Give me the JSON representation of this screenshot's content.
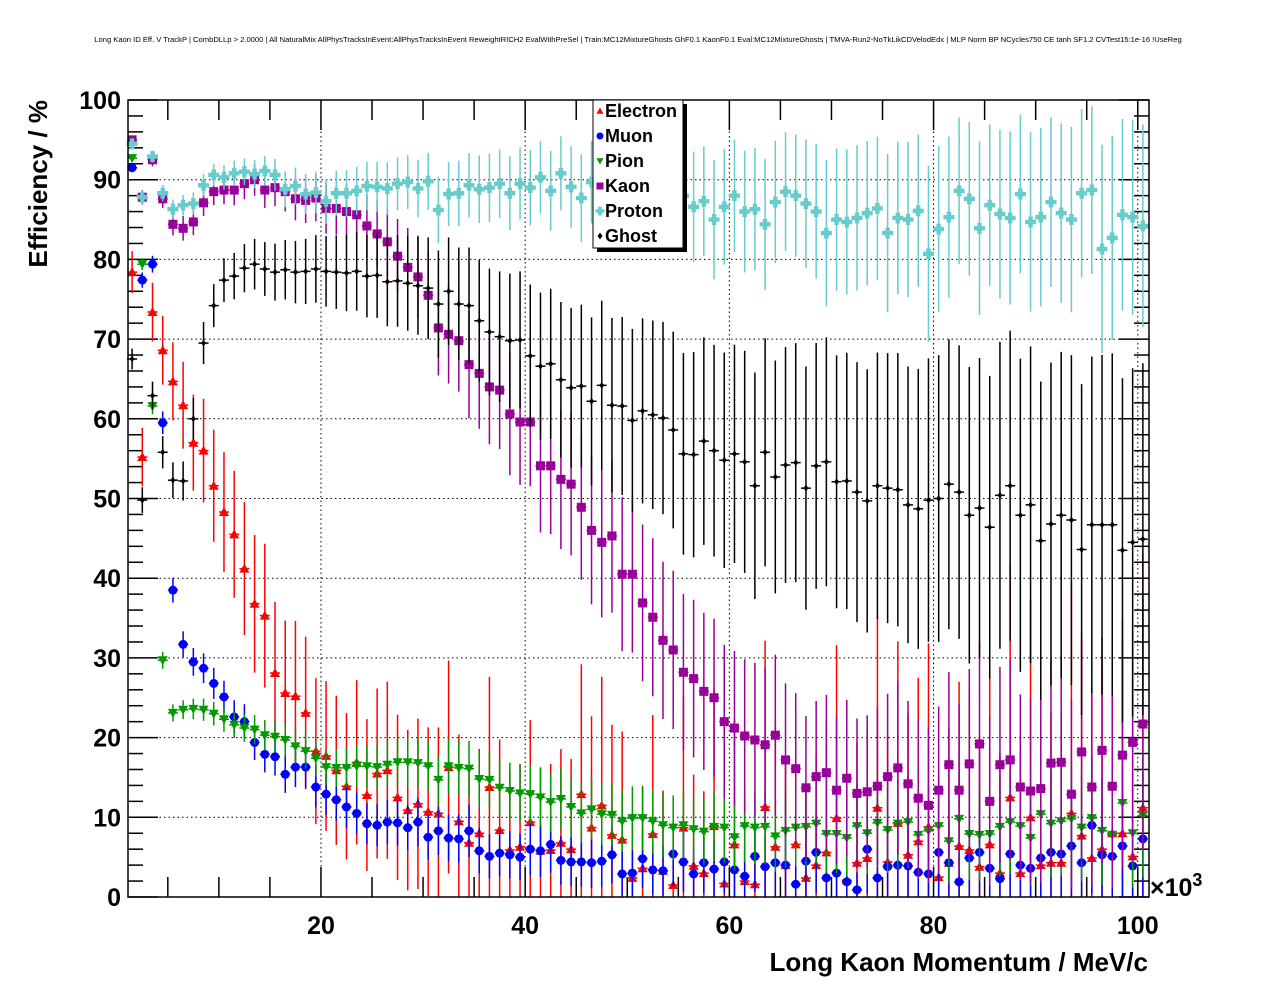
{
  "chart_data": {
    "type": "scatter",
    "title": "Long Kaon ID Eff. V TrackP | CombDLLp > 2.0000 | All NaturalMix AllPhysTracksInEvent:AllPhysTracksInEvent ReweightRICH2 EvalWithPreSel | Train:MC12MixtureGhosts GhF0.1 KaonF0.1 Eval:MC12MixtureGhosts | TMVA-Run2-NoTkLikCDVelodEdx | MLP Norm BP NCycles750 CE tanh SF1.2 CVTest15:1e-16 !UseReg",
    "xlabel": "Long Kaon Momentum / MeV/c",
    "ylabel": "Efficiency / %",
    "x_multiplier_label": "×10",
    "x_multiplier_exp": "3",
    "xlim": [
      1.1,
      101.1
    ],
    "ylim": [
      0,
      100
    ],
    "x_ticks": [
      20,
      40,
      60,
      80,
      100
    ],
    "y_ticks": [
      0,
      10,
      20,
      30,
      40,
      50,
      60,
      70,
      80,
      90,
      100
    ],
    "grid": true,
    "legend_position": "top-center",
    "x_start": 1.5,
    "x_step": 1,
    "series": [
      {
        "name": "Electron",
        "color": "#ff0000",
        "marker": "triangle-up",
        "values": [
          78.4,
          55.2,
          73.4,
          68.6,
          64.7,
          61.7,
          57,
          56,
          51.6,
          48.3,
          45.5,
          41.2,
          36.8,
          35.3,
          28.1,
          25.6,
          25.2,
          23.1,
          18.3,
          17.7,
          15.9,
          13.9,
          16.9,
          12.8,
          15.5,
          15.9,
          12.5,
          10.9,
          11.7,
          10.7,
          10.5,
          16.3,
          9.5,
          6.8,
          8,
          13.8,
          8.4,
          5.9,
          6.3,
          9.4,
          5.8,
          5.9,
          6.8,
          6,
          12.9,
          8.7,
          11.5,
          7.8,
          7.2,
          2.4,
          3.6,
          7.9,
          3.3,
          1.5,
          8.7,
          3.9,
          3,
          8.9,
          1.7,
          6.6,
          2,
          1.6,
          11.3,
          6.3,
          4,
          6.6,
          2.4,
          4,
          5.6,
          9.9,
          2.1,
          4.3,
          4.9,
          11.2,
          4.4,
          9.3,
          5.3,
          7,
          8.8,
          2.5,
          4.3,
          6.4,
          5.9,
          3.8,
          6.6,
          3,
          12.5,
          3,
          10,
          4,
          4.3,
          4.3,
          10.5,
          7.7,
          4.9,
          6,
          8,
          8,
          5.1,
          11.2
        ]
      },
      {
        "name": "Muon",
        "color": "#0000ff",
        "marker": "circle",
        "values": [
          91.5,
          77.4,
          79.4,
          59.5,
          38.5,
          31.7,
          29.5,
          28.7,
          26.8,
          25.1,
          22.6,
          22,
          19.4,
          17.9,
          17.6,
          15.4,
          16.3,
          16.3,
          13.8,
          12.9,
          12.2,
          11.3,
          10.5,
          9.2,
          9,
          9.4,
          9.3,
          8.7,
          9.4,
          7.5,
          8.3,
          7.4,
          7.3,
          8.3,
          5.8,
          5.1,
          5.5,
          5.3,
          5,
          6,
          5.8,
          6.6,
          4.6,
          4.4,
          4.4,
          4.3,
          4.5,
          5.3,
          2.9,
          3,
          4.8,
          3.4,
          3.3,
          5.4,
          4.4,
          2.9,
          4.3,
          3.5,
          4.4,
          3.4,
          2.6,
          5.1,
          3.8,
          4.3,
          4,
          1.6,
          4.5,
          5.6,
          2.4,
          3,
          1.9,
          0.9,
          6,
          2.4,
          3.8,
          4,
          3.9,
          3.1,
          2.9,
          5.6,
          4.3,
          1.9,
          4.9,
          5.6,
          3.6,
          2.3,
          5.4,
          4,
          3.6,
          4.9,
          5.6,
          5.4,
          6.4,
          4.3,
          9,
          5.3,
          5.1,
          6.4,
          3.9,
          7.3
        ]
      },
      {
        "name": "Pion",
        "color": "#009900",
        "marker": "triangle-down",
        "values": [
          92.7,
          79.4,
          61.6,
          29.7,
          23.1,
          23.5,
          23.6,
          23.5,
          23,
          22.3,
          21.6,
          21.2,
          21,
          20.3,
          20.1,
          19.7,
          18.9,
          18.3,
          17.4,
          16.3,
          16.2,
          16.2,
          16.4,
          16.4,
          16.3,
          16.6,
          16.9,
          16.9,
          16.8,
          16.4,
          14.7,
          16.4,
          16.2,
          16.1,
          14.8,
          14.7,
          13.7,
          13.3,
          13,
          12.9,
          12.5,
          11.9,
          12.3,
          11.3,
          10.5,
          11,
          10.4,
          10.3,
          9.5,
          9.9,
          9.9,
          9.5,
          9,
          8.7,
          9,
          8.5,
          8.2,
          8.8,
          8.7,
          7.5,
          8.9,
          8.7,
          8.8,
          7.6,
          8.3,
          8.7,
          8.8,
          9.2,
          7.9,
          7.9,
          7.4,
          8.9,
          8,
          9.3,
          8.4,
          9.2,
          9.4,
          7.8,
          8.3,
          8.9,
          7,
          9.8,
          7.9,
          7.8,
          7.9,
          8.8,
          9.4,
          8.9,
          7.4,
          10.4,
          9.2,
          9.5,
          9.8,
          8.7,
          9.9,
          8.3,
          7.8,
          11.8,
          8,
          10.2
        ]
      },
      {
        "name": "Kaon",
        "color": "#990099",
        "marker": "square",
        "values": [
          95,
          87.8,
          92.5,
          87.6,
          84.4,
          83.9,
          84.7,
          87.1,
          88.5,
          88.7,
          88.7,
          89.5,
          90,
          88.7,
          89,
          88.5,
          87.6,
          87.4,
          87.7,
          86.4,
          86.4,
          86,
          85.6,
          84.2,
          83.2,
          82.2,
          80.4,
          79,
          77.8,
          75.5,
          71.4,
          70.6,
          69.8,
          66.8,
          65.7,
          64,
          63.6,
          60.6,
          59.6,
          59.6,
          54.1,
          54.1,
          52.4,
          51.8,
          48.9,
          46,
          44.5,
          45.3,
          40.5,
          40.5,
          36.9,
          35.1,
          32.2,
          31,
          28.2,
          27.4,
          25.8,
          25,
          22,
          21.2,
          20.2,
          19.7,
          19.1,
          20.3,
          17.2,
          16.1,
          13.7,
          15.1,
          15.6,
          13.4,
          14.9,
          13,
          13.2,
          13.9,
          15.1,
          16.2,
          14.2,
          12.4,
          11.5,
          13.4,
          16.6,
          13.4,
          16.7,
          19.2,
          12,
          16.6,
          17.2,
          13.8,
          13.3,
          13.6,
          16.8,
          16.9,
          12.9,
          18.2,
          13.8,
          18.4,
          13.9,
          17.8,
          19.4,
          21.7
        ]
      },
      {
        "name": "Proton",
        "color": "#66cccc",
        "marker": "cross",
        "values": [
          94.5,
          87.8,
          92.9,
          88.3,
          86.3,
          86.8,
          87,
          89.3,
          90.6,
          90.3,
          90.8,
          91,
          90.7,
          91.1,
          90.6,
          88.8,
          89.2,
          88.2,
          88.4,
          87.3,
          88.3,
          88.3,
          88.6,
          89.2,
          89.1,
          88.9,
          89.5,
          89.7,
          88.9,
          89.8,
          86.2,
          88.2,
          88.3,
          89.3,
          88.8,
          89,
          89.5,
          88.3,
          89.5,
          89,
          90.3,
          88.6,
          90.8,
          89.1,
          87.7,
          89.7,
          88.5,
          88,
          89,
          88.5,
          88,
          88.7,
          88.3,
          88.5,
          88,
          86.6,
          87.3,
          85,
          86.6,
          88,
          86,
          86.3,
          84.4,
          87.2,
          88.5,
          88,
          87,
          86,
          83.3,
          85,
          84.7,
          85.2,
          85.8,
          86.4,
          83.3,
          85.2,
          85,
          86.1,
          80.7,
          83.8,
          85.3,
          88.6,
          87.6,
          83.9,
          86.8,
          85.7,
          85.2,
          88.2,
          84.7,
          85.3,
          87.2,
          85.8,
          85,
          88.3,
          88.7,
          81.3,
          82.7,
          85.6,
          85.3,
          84.2
        ]
      },
      {
        "name": "Ghost",
        "color": "#000000",
        "marker": "diamond",
        "values": [
          67.5,
          49.8,
          62.9,
          55.8,
          52.3,
          52.2,
          60,
          69.5,
          74.2,
          77.4,
          77.9,
          78.9,
          79.4,
          78.8,
          78.4,
          78.7,
          78.4,
          78.5,
          78.8,
          78.5,
          78.4,
          78.3,
          78.5,
          77.9,
          78,
          77.2,
          77.3,
          77,
          76.7,
          76.4,
          74.4,
          76,
          74.4,
          74.2,
          72.3,
          70.9,
          70.3,
          69.8,
          69.9,
          67.9,
          66.6,
          66.9,
          64.9,
          63.9,
          64.1,
          62.2,
          64.2,
          61.7,
          61.6,
          59.8,
          61,
          60.5,
          60.1,
          58.6,
          55.6,
          55.5,
          57.2,
          56,
          54.8,
          55.6,
          54.6,
          51.6,
          55.8,
          52.7,
          54.2,
          54.5,
          51.3,
          54.1,
          54.6,
          52.1,
          52.2,
          50.8,
          49.7,
          51.6,
          51.3,
          51.1,
          49.2,
          48.7,
          49.8,
          50,
          51.8,
          50.8,
          47.9,
          48.8,
          46.4,
          50.4,
          51.6,
          47.9,
          49.2,
          44.7,
          46.8,
          47.9,
          47.3,
          43.6,
          46.7,
          46.7,
          46.7,
          43.5,
          44.5,
          44.9
        ]
      }
    ]
  }
}
